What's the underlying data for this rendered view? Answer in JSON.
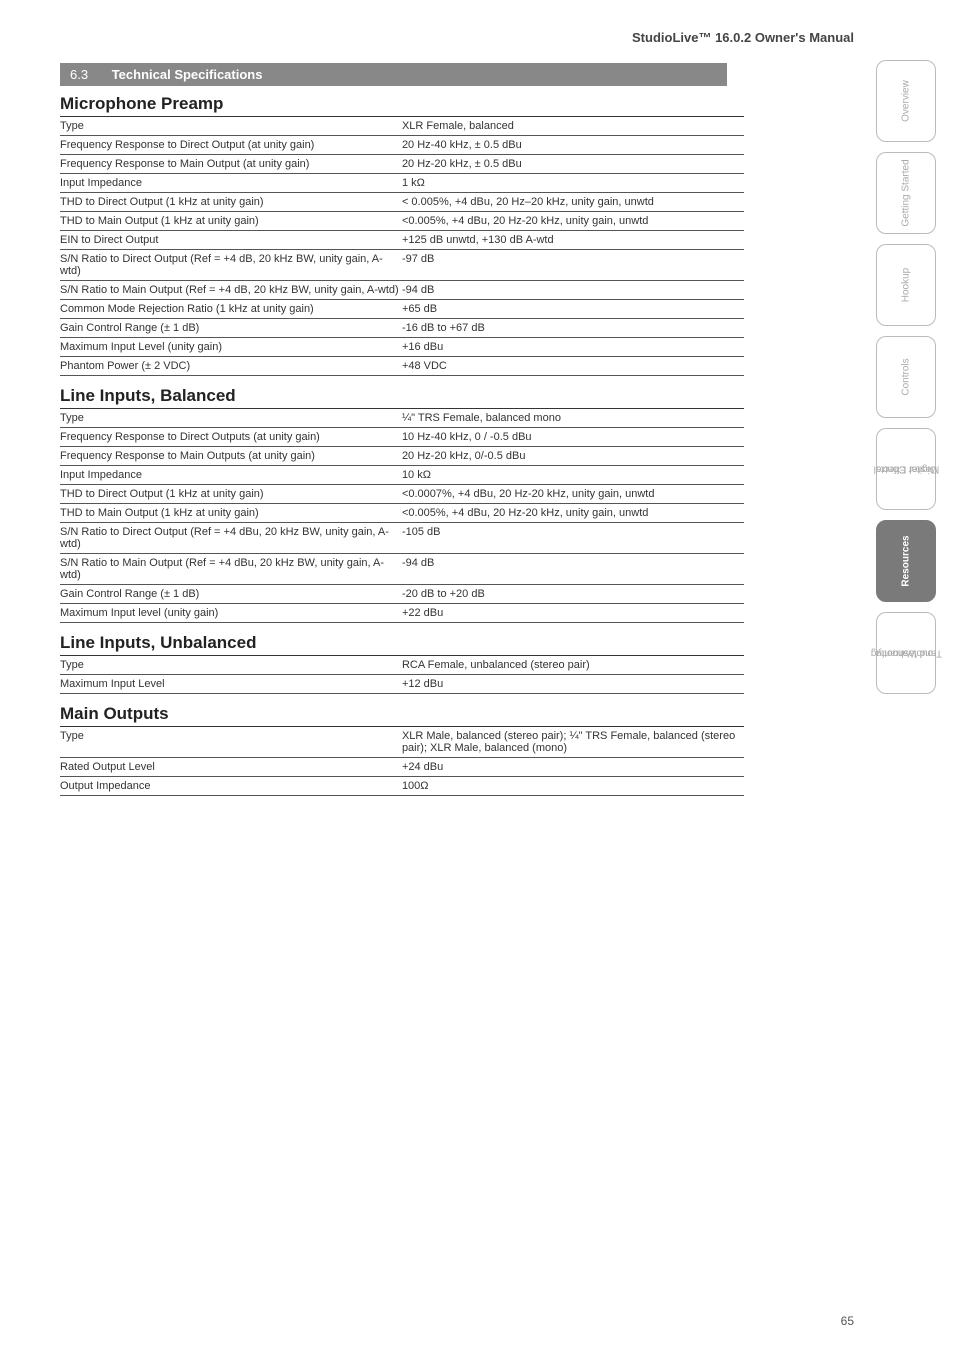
{
  "header": {
    "manual_title": "StudioLive™ 16.0.2 Owner's Manual"
  },
  "section_bar": {
    "num": "6.3",
    "title": "Technical Specifications"
  },
  "groups": [
    {
      "heading": "Microphone Preamp",
      "rows": [
        [
          "Type",
          "XLR Female, balanced"
        ],
        [
          "Frequency Response to Direct Output (at unity gain)",
          "20 Hz-40 kHz, ± 0.5 dBu"
        ],
        [
          "Frequency Response to Main Output (at unity gain)",
          "20 Hz-20 kHz, ± 0.5 dBu"
        ],
        [
          "Input Impedance",
          "1 kΩ"
        ],
        [
          "THD to Direct Output (1 kHz at unity gain)",
          "< 0.005%, +4 dBu, 20 Hz–20 kHz, unity gain, unwtd"
        ],
        [
          "THD to Main Output (1 kHz at unity gain)",
          "<0.005%, +4 dBu, 20 Hz-20 kHz, unity gain, unwtd"
        ],
        [
          "EIN to Direct Output",
          "+125 dB unwtd, +130 dB A-wtd"
        ],
        [
          "S/N Ratio to Direct Output (Ref = +4 dB, 20 kHz BW, unity gain, A-wtd)",
          "-97 dB"
        ],
        [
          "S/N Ratio to Main Output (Ref = +4 dB, 20 kHz BW, unity gain, A-wtd)",
          "-94 dB"
        ],
        [
          "Common Mode Rejection Ratio (1 kHz at unity gain)",
          "+65 dB"
        ],
        [
          "Gain Control Range (± 1 dB)",
          "-16 dB to +67 dB"
        ],
        [
          "Maximum Input Level (unity gain)",
          "+16 dBu"
        ],
        [
          "Phantom Power (± 2 VDC)",
          "+48 VDC"
        ]
      ]
    },
    {
      "heading": "Line Inputs, Balanced",
      "rows": [
        [
          "Type",
          "¼\" TRS Female, balanced mono"
        ],
        [
          "Frequency Response to Direct Outputs (at unity gain)",
          "10 Hz-40 kHz, 0 / -0.5 dBu"
        ],
        [
          "Frequency Response to Main Outputs (at unity gain)",
          "20 Hz-20 kHz, 0/-0.5 dBu"
        ],
        [
          "Input Impedance",
          "10 kΩ"
        ],
        [
          "THD to Direct Output (1 kHz at unity gain)",
          "<0.0007%, +4 dBu, 20 Hz-20 kHz, unity gain, unwtd"
        ],
        [
          "THD to Main Output (1 kHz at unity gain)",
          "<0.005%, +4 dBu, 20 Hz-20 kHz, unity gain, unwtd"
        ],
        [
          "S/N Ratio to Direct Output (Ref = +4 dBu, 20 kHz BW, unity gain, A-wtd)",
          "-105 dB"
        ],
        [
          "S/N Ratio to Main Output (Ref = +4 dBu, 20 kHz BW, unity gain, A-wtd)",
          "-94 dB"
        ],
        [
          "Gain Control Range (± 1 dB)",
          "-20 dB to +20 dB"
        ],
        [
          "Maximum Input level (unity gain)",
          "+22 dBu"
        ]
      ]
    },
    {
      "heading": "Line Inputs, Unbalanced",
      "rows": [
        [
          "Type",
          "RCA Female, unbalanced (stereo pair)"
        ],
        [
          "Maximum Input Level",
          "+12 dBu"
        ]
      ]
    },
    {
      "heading": "Main Outputs",
      "rows": [
        [
          "Type",
          "XLR Male, balanced (stereo pair); ¼\" TRS Female, balanced (stereo pair); XLR Male, balanced (mono)"
        ],
        [
          "Rated Output Level",
          "+24 dBu"
        ],
        [
          "Output Impedance",
          "100Ω"
        ]
      ]
    }
  ],
  "tabs": [
    {
      "label": "Overview",
      "active": false
    },
    {
      "label": "Getting Started",
      "active": false
    },
    {
      "label": "Hookup",
      "active": false
    },
    {
      "label": "Controls",
      "active": false
    },
    {
      "label": "Digital Effects\nMaster Control",
      "active": false
    },
    {
      "label": "Resources",
      "active": true
    },
    {
      "label": "Troubleshooting\nand Warranty",
      "active": false
    }
  ],
  "page_number": "65"
}
